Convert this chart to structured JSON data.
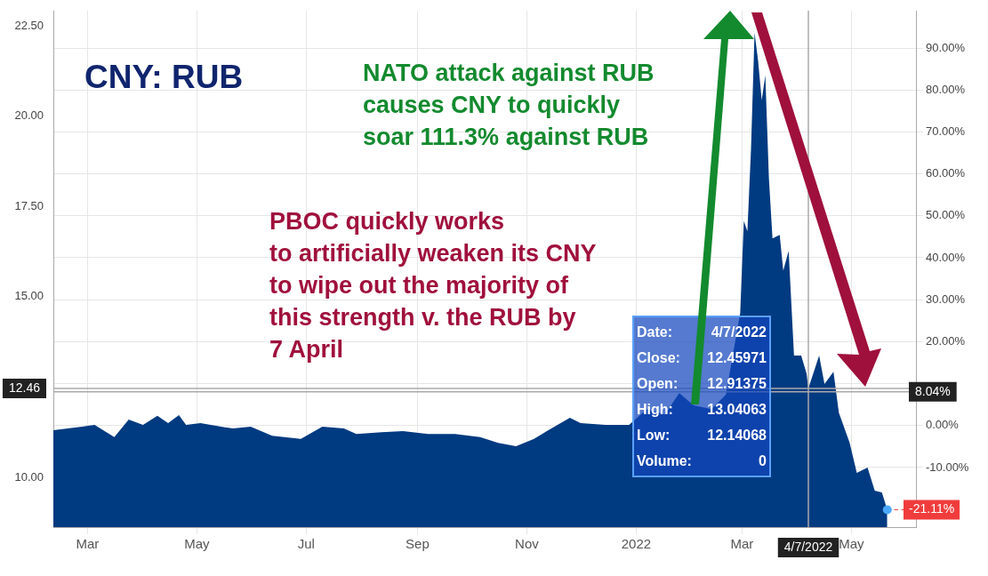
{
  "chart_data": {
    "type": "area",
    "title": "CNY: RUB",
    "x": [
      "2021-02-10",
      "2021-02-26",
      "2021-03-05",
      "2021-03-16",
      "2021-03-24",
      "2021-04-01",
      "2021-04-09",
      "2021-04-15",
      "2021-04-21",
      "2021-04-25",
      "2021-05-03",
      "2021-05-21",
      "2021-05-31",
      "2021-06-12",
      "2021-06-28",
      "2021-07-10",
      "2021-07-22",
      "2021-07-29",
      "2021-08-12",
      "2021-08-24",
      "2021-09-07",
      "2021-09-22",
      "2021-10-06",
      "2021-10-16",
      "2021-10-26",
      "2021-11-05",
      "2021-11-13",
      "2021-11-25",
      "2021-12-01",
      "2021-12-15",
      "2021-12-28",
      "2022-01-07",
      "2022-01-17",
      "2022-01-25",
      "2022-02-02",
      "2022-02-12",
      "2022-02-20",
      "2022-02-28",
      "2022-03-02",
      "2022-03-04",
      "2022-03-06",
      "2022-03-08",
      "2022-03-10",
      "2022-03-12",
      "2022-03-14",
      "2022-03-16",
      "2022-03-18",
      "2022-03-22",
      "2022-03-24",
      "2022-03-27",
      "2022-03-30",
      "2022-04-03",
      "2022-04-06",
      "2022-04-07",
      "2022-04-13",
      "2022-04-16",
      "2022-04-21",
      "2022-04-24",
      "2022-04-30",
      "2022-05-04",
      "2022-05-10",
      "2022-05-14",
      "2022-05-18",
      "2022-05-21"
    ],
    "series": [
      {
        "color": "#003a80",
        "values": [
          11.3,
          11.4,
          11.45,
          11.11,
          11.6,
          11.45,
          11.7,
          11.5,
          11.72,
          11.45,
          11.5,
          11.35,
          11.4,
          11.15,
          11.06,
          11.4,
          11.35,
          11.2,
          11.25,
          11.28,
          11.2,
          11.2,
          11.11,
          10.95,
          10.86,
          11.06,
          11.3,
          11.65,
          11.5,
          11.45,
          11.45,
          11.89,
          11.74,
          12.33,
          11.99,
          11.89,
          12.29,
          14.55,
          17.1,
          16.81,
          19.07,
          22.31,
          21.52,
          20.44,
          21.13,
          18.28,
          16.61,
          16.71,
          15.72,
          16.27,
          13.37,
          13.37,
          12.87,
          12.46,
          13.37,
          12.58,
          12.92,
          11.79,
          10.96,
          10.12,
          10.27,
          9.63,
          9.58,
          9.1
        ]
      }
    ],
    "xlim": [
      "2021-02-10",
      "2022-06-06"
    ],
    "xticks": [
      {
        "value": "2021-03-01",
        "label": "Mar"
      },
      {
        "value": "2021-05-01",
        "label": "May"
      },
      {
        "value": "2021-07-01",
        "label": "Jul"
      },
      {
        "value": "2021-09-01",
        "label": "Sep"
      },
      {
        "value": "2021-11-01",
        "label": "Nov"
      },
      {
        "value": "2022-01-01",
        "label": "2022"
      },
      {
        "value": "2022-03-01",
        "label": "Mar"
      },
      {
        "value": "2022-05-01",
        "label": "May"
      }
    ],
    "ylim": [
      8.62,
      22.92
    ],
    "yticks": [
      {
        "value": 10,
        "label": "10.00"
      },
      {
        "value": 12.5,
        "label": null
      },
      {
        "value": 15,
        "label": "15.00"
      },
      {
        "value": 17.5,
        "label": "17.50"
      },
      {
        "value": 20,
        "label": "20.00"
      },
      {
        "value": 22.5,
        "label": "22.50"
      }
    ],
    "y2lim": [
      -24.2,
      98.9
    ],
    "y2ticks": [
      {
        "value": -20,
        "label": null
      },
      {
        "value": -10,
        "label": "-10.00%"
      },
      {
        "value": 0,
        "label": "0.00%"
      },
      {
        "value": 10,
        "label": null
      },
      {
        "value": 20,
        "label": "20.00%"
      },
      {
        "value": 30,
        "label": "30.00%"
      },
      {
        "value": 40,
        "label": "40.00%"
      },
      {
        "value": 50,
        "label": "50.00%"
      },
      {
        "value": 60,
        "label": "60.00%"
      },
      {
        "value": 70,
        "label": "70.00%"
      },
      {
        "value": 80,
        "label": "80.00%"
      },
      {
        "value": 90,
        "label": "90.00%"
      }
    ],
    "grid": true,
    "legend": false,
    "ref_lines": [
      {
        "axis": "y",
        "value": 12.46,
        "label": "12.46",
        "color": "#aaaaaa"
      },
      {
        "axis": "y2",
        "value": 8.04,
        "label": "8.04%",
        "color": "#aaaaaa"
      },
      {
        "axis": "x",
        "value": "2022-04-07",
        "label": "4/7/2022",
        "color": "#aaaaaa"
      }
    ],
    "annotations": [
      "NATO attack against RUB\ncauses CNY to quickly\nsoar 111.3% against RUB",
      "PBOC quickly works\nto artificially weaken its CNY\nto wipe out the majority of\nthis strength v. the RUB by\n7 April",
      "Date: 4/7/2022",
      "Close: 12.45971",
      "Open: 12.91375",
      "High: 13.04063",
      "Low: 12.14068",
      "Volume: 0",
      {
        "text": "-21.11%",
        "x": "2022-05-21",
        "y": 9.1
      }
    ]
  }
}
